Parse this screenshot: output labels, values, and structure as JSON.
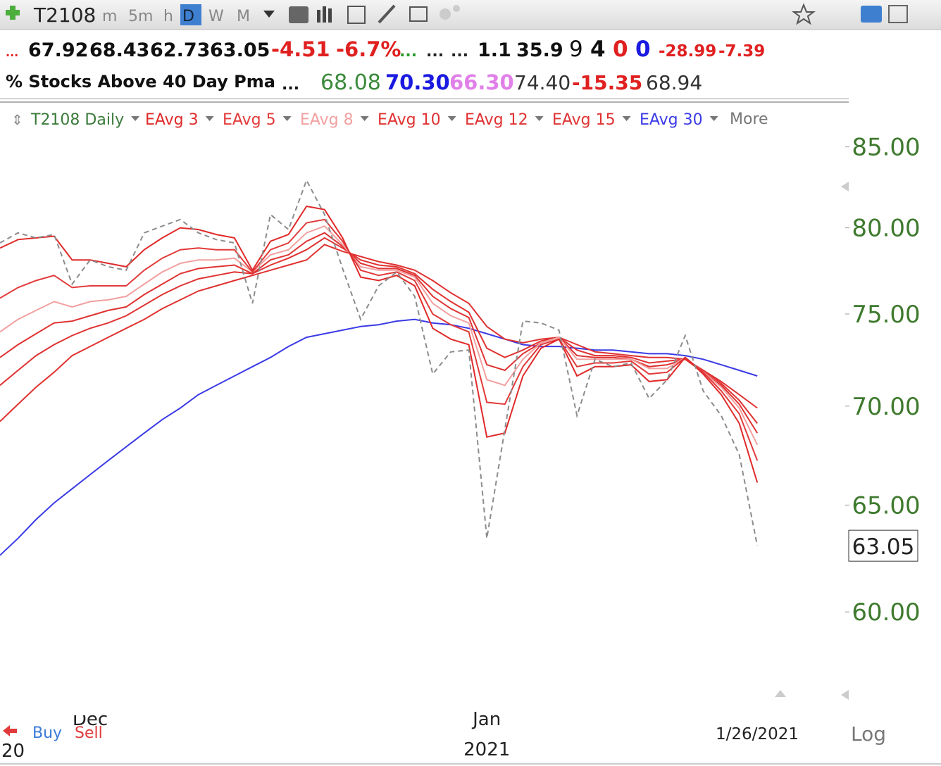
{
  "toolbar": {
    "symbol": "T2108",
    "timeframes": [
      "m",
      "5m",
      "h",
      "D",
      "W",
      "M"
    ]
  },
  "quote": {
    "values": [
      "...",
      "67.92",
      "68.43",
      "62.73",
      "63.05",
      "-4.51",
      "-6.7%",
      "...",
      "...",
      "...",
      "1.1",
      "35.9",
      "9",
      "4",
      "0",
      "0",
      "-28.99",
      "-7.39"
    ]
  },
  "row2": {
    "name": "% Stocks Above 40 Day Pma",
    "values": [
      "...",
      "68.08",
      "70.30",
      "66.30",
      "74.40",
      "-15.35",
      "68.94"
    ]
  },
  "bottom": {
    "buy": "Buy",
    "sell": "Sell",
    "log": "Log",
    "left_cut": "20"
  },
  "chart_data": {
    "type": "line",
    "log_scale": true,
    "more_label": "More",
    "categories": [
      null,
      null,
      null,
      null,
      null,
      "Dec",
      null,
      null,
      null,
      null,
      null,
      null,
      null,
      null,
      null,
      null,
      null,
      null,
      null,
      null,
      null,
      null,
      null,
      null,
      null,
      null,
      null,
      "Jan",
      null,
      null,
      null,
      null,
      null,
      null,
      null,
      null,
      null,
      null,
      null,
      null,
      null,
      null,
      null
    ],
    "year_label": "2021",
    "date_label": "1/26/2021",
    "ylim": [
      56.0,
      87.9
    ],
    "yticks": [
      {
        "value": 60,
        "label": "60.00"
      },
      {
        "value": 65,
        "label": "65.00"
      },
      {
        "value": 70,
        "label": "70.00"
      },
      {
        "value": 75,
        "label": "75.00"
      },
      {
        "value": 80,
        "label": "80.00"
      },
      {
        "value": 85,
        "label": "85.00"
      }
    ],
    "series": [
      {
        "name": "T2108 Daily",
        "color": "#8c8c8c",
        "legend_color": "#3a7a3a",
        "dashed": true,
        "values": [
          79.1,
          79.7,
          79.4,
          79.6,
          76.7,
          78.1,
          77.7,
          77.5,
          79.7,
          80.1,
          80.5,
          79.7,
          79.3,
          79.1,
          75.6,
          80.8,
          79.9,
          82.9,
          80.8,
          77.6,
          74.7,
          76.6,
          77.4,
          76.0,
          71.7,
          72.9,
          73.0,
          63.4,
          68.8,
          74.6,
          74.5,
          74.1,
          69.5,
          72.5,
          72.1,
          72.3,
          70.4,
          71.4,
          73.8,
          70.8,
          69.5,
          67.5,
          63.05
        ]
      },
      {
        "name": "EAvg 3",
        "color": "#e02a2a",
        "values": [
          78.8,
          79.3,
          79.4,
          79.5,
          78.1,
          78.1,
          77.9,
          77.7,
          78.7,
          79.4,
          80.0,
          79.9,
          79.6,
          79.4,
          77.5,
          79.2,
          79.6,
          81.3,
          81.1,
          79.4,
          77.1,
          76.9,
          77.2,
          76.6,
          74.2,
          73.6,
          73.3,
          68.4,
          68.6,
          71.6,
          73.1,
          73.6,
          71.6,
          72.1,
          72.1,
          72.2,
          71.3,
          71.4,
          72.6,
          71.7,
          70.6,
          69.1,
          66.1
        ]
      },
      {
        "name": "EAvg 5",
        "color": "#e23a3a",
        "values": [
          75.9,
          76.5,
          76.9,
          77.2,
          76.5,
          76.6,
          76.6,
          76.6,
          77.5,
          78.2,
          78.7,
          78.8,
          78.7,
          78.7,
          77.4,
          78.7,
          79.1,
          80.3,
          80.5,
          79.2,
          77.5,
          77.2,
          77.4,
          76.9,
          75.0,
          74.4,
          74.0,
          70.2,
          70.1,
          72.1,
          73.3,
          73.6,
          72.1,
          72.3,
          72.3,
          72.4,
          71.7,
          71.8,
          72.6,
          71.8,
          70.8,
          69.6,
          67.2
        ]
      },
      {
        "name": "EAvg 8",
        "color": "#f2a0a0",
        "values": [
          74.0,
          74.7,
          75.2,
          75.7,
          75.4,
          75.7,
          75.8,
          76.0,
          76.7,
          77.4,
          77.9,
          78.1,
          78.1,
          78.2,
          77.4,
          78.4,
          78.7,
          79.7,
          80.1,
          79.0,
          77.7,
          77.5,
          77.5,
          77.1,
          75.6,
          74.9,
          74.5,
          71.4,
          71.1,
          72.5,
          73.4,
          73.7,
          72.5,
          72.5,
          72.5,
          72.5,
          72.0,
          72.0,
          72.6,
          71.8,
          71.0,
          69.9,
          68.0
        ]
      },
      {
        "name": "EAvg 10",
        "color": "#e03232",
        "values": [
          72.6,
          73.3,
          73.9,
          74.5,
          74.6,
          74.9,
          75.2,
          75.4,
          76.1,
          76.7,
          77.3,
          77.6,
          77.7,
          77.8,
          77.3,
          78.1,
          78.4,
          79.2,
          79.7,
          78.9,
          77.9,
          77.6,
          77.6,
          77.2,
          76.0,
          75.3,
          74.8,
          72.2,
          71.9,
          72.8,
          73.4,
          73.7,
          72.7,
          72.6,
          72.6,
          72.5,
          72.1,
          72.2,
          72.5,
          71.8,
          71.1,
          70.1,
          68.6
        ]
      },
      {
        "name": "EAvg 12",
        "color": "#e03232",
        "values": [
          71.1,
          71.9,
          72.7,
          73.3,
          73.8,
          74.2,
          74.5,
          74.9,
          75.5,
          76.1,
          76.6,
          77.0,
          77.2,
          77.4,
          77.3,
          77.8,
          78.2,
          78.7,
          79.4,
          78.8,
          78.1,
          77.8,
          77.7,
          77.3,
          76.4,
          75.7,
          75.1,
          73.1,
          72.6,
          73.0,
          73.5,
          73.7,
          73.0,
          72.7,
          72.7,
          72.6,
          72.3,
          72.4,
          72.5,
          71.9,
          71.2,
          70.3,
          69.1
        ]
      },
      {
        "name": "EAvg 15",
        "color": "#e03232",
        "values": [
          69.2,
          70.1,
          71.0,
          71.8,
          72.7,
          73.2,
          73.7,
          74.2,
          74.7,
          75.3,
          75.8,
          76.3,
          76.6,
          76.9,
          77.2,
          77.5,
          77.8,
          78.1,
          79.0,
          78.6,
          78.3,
          78.0,
          77.8,
          77.5,
          76.9,
          76.2,
          75.6,
          74.3,
          73.6,
          73.4,
          73.6,
          73.7,
          73.3,
          72.9,
          72.8,
          72.7,
          72.6,
          72.6,
          72.5,
          71.9,
          71.3,
          70.6,
          69.9
        ]
      },
      {
        "name": "EAvg 30",
        "color": "#3b3be6",
        "values": [
          62.6,
          63.4,
          64.3,
          65.1,
          65.8,
          66.5,
          67.2,
          67.9,
          68.6,
          69.3,
          69.9,
          70.6,
          71.1,
          71.6,
          72.1,
          72.6,
          73.2,
          73.7,
          73.9,
          74.1,
          74.3,
          74.4,
          74.6,
          74.7,
          74.5,
          74.4,
          74.2,
          73.9,
          73.6,
          73.3,
          73.2,
          73.2,
          73.1,
          73.0,
          73.0,
          72.9,
          72.8,
          72.8,
          72.7,
          72.5,
          72.2,
          71.9,
          71.6
        ]
      }
    ]
  }
}
